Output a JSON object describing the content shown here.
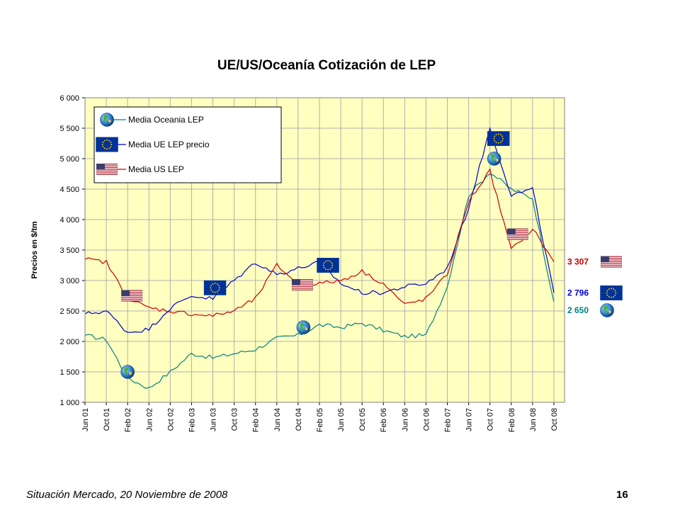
{
  "chart_data": {
    "type": "line",
    "title": "UE/US/Oceanía Cotización de LEP",
    "xlabel": "",
    "ylabel": "Precios en $/tm",
    "ylim": [
      1000,
      6000
    ],
    "yticks": [
      "1 000",
      "1 500",
      "2 000",
      "2 500",
      "3 000",
      "3 500",
      "4 000",
      "4 500",
      "5 000",
      "5 500",
      "6 000"
    ],
    "grid": true,
    "legend_position": "top-left",
    "categories": [
      "Jun 01",
      "Oct 01",
      "Feb 02",
      "Jun 02",
      "Oct 02",
      "Feb 03",
      "Jun 03",
      "Oct 03",
      "Feb 04",
      "Jun 04",
      "Oct 04",
      "Feb 05",
      "Jun 05",
      "Oct 05",
      "Feb 06",
      "Jun 06",
      "Oct 06",
      "Feb 07",
      "Jun 07",
      "Oct 07",
      "Feb 08",
      "Jun 08",
      "Oct 08"
    ],
    "series": [
      {
        "name": "Media Oceania LEP",
        "color": "#008080",
        "icon": "globe-icon",
        "end_label": "2 650",
        "values": [
          2100,
          2030,
          1400,
          1230,
          1500,
          1800,
          1730,
          1800,
          1870,
          2050,
          2100,
          2270,
          2230,
          2300,
          2180,
          2080,
          2100,
          2900,
          4400,
          4780,
          4500,
          4350,
          2650
        ]
      },
      {
        "name": "Media UE LEP  precio",
        "color": "#0000cc",
        "icon": "eu-flag-icon",
        "end_label": "2 796",
        "values": [
          2450,
          2500,
          2150,
          2200,
          2550,
          2750,
          2700,
          3000,
          3300,
          3100,
          3200,
          3300,
          2950,
          2800,
          2800,
          2900,
          2950,
          3200,
          4200,
          5500,
          4400,
          4500,
          2796
        ]
      },
      {
        "name": "Media US LEP",
        "color": "#cc0000",
        "icon": "us-flag-icon",
        "end_label": "3 307",
        "values": [
          3350,
          3300,
          2700,
          2550,
          2500,
          2450,
          2420,
          2500,
          2700,
          3250,
          2950,
          2950,
          3000,
          3150,
          2950,
          2600,
          2700,
          3100,
          4300,
          4800,
          3500,
          3850,
          3307
        ]
      }
    ],
    "markers": [
      {
        "series": 0,
        "icon": "globe-icon",
        "x": 2.0,
        "y": 1500
      },
      {
        "series": 0,
        "icon": "globe-icon",
        "x": 10.25,
        "y": 2230
      },
      {
        "series": 0,
        "icon": "globe-icon",
        "x": 19.2,
        "y": 5000
      },
      {
        "series": 1,
        "icon": "eu-flag-icon",
        "x": 6.1,
        "y": 2880
      },
      {
        "series": 1,
        "icon": "eu-flag-icon",
        "x": 11.4,
        "y": 3250
      },
      {
        "series": 1,
        "icon": "eu-flag-icon",
        "x": 19.4,
        "y": 5330
      },
      {
        "series": 2,
        "icon": "us-flag-icon",
        "x": 2.2,
        "y": 2750
      },
      {
        "series": 2,
        "icon": "us-flag-icon",
        "x": 10.2,
        "y": 2930
      },
      {
        "series": 2,
        "icon": "us-flag-icon",
        "x": 20.3,
        "y": 3760
      }
    ]
  },
  "footer": {
    "source": "Situación Mercado, 20 Noviembre de  2008",
    "page_number": "16"
  },
  "colors": {
    "plot_background": "#ffffc0",
    "gridline": "#b0b0b0",
    "oceania": "#008080",
    "eu": "#0000cc",
    "us": "#cc0000"
  }
}
